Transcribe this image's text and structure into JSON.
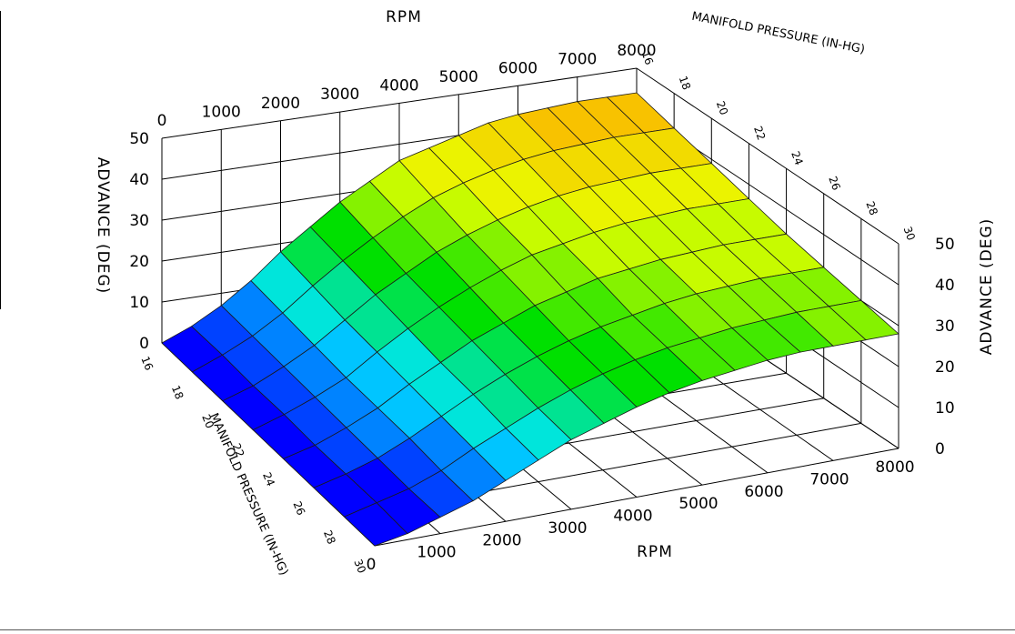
{
  "chart_data": {
    "type": "surface",
    "title": "",
    "axes": {
      "rpm": {
        "label": "RPM",
        "range": [
          0,
          8000
        ],
        "ticks": [
          0,
          1000,
          2000,
          3000,
          4000,
          5000,
          6000,
          7000,
          8000
        ]
      },
      "manifold_pressure": {
        "label": "MANIFOLD PRESSURE (IN-HG)",
        "range": [
          16,
          30
        ],
        "ticks": [
          16,
          18,
          20,
          22,
          24,
          26,
          28,
          30
        ]
      },
      "advance": {
        "label": "ADVANCE (DEG)",
        "range": [
          0,
          50
        ],
        "ticks": [
          0,
          10,
          20,
          30,
          40,
          50
        ]
      }
    },
    "rpm": [
      0,
      500,
      1000,
      1500,
      2000,
      2500,
      3000,
      3500,
      4000,
      4500,
      5000,
      5500,
      6000,
      6500,
      7000,
      7500,
      8000
    ],
    "manifold_pressure": [
      16,
      18,
      20,
      22,
      24,
      26,
      28,
      30
    ],
    "advance_grid": [
      [
        0,
        3,
        7,
        12,
        18,
        23,
        28,
        32,
        36,
        38,
        40,
        42,
        43,
        43.5,
        44,
        44,
        44
      ],
      [
        0,
        3,
        6.5,
        11,
        16.5,
        21.5,
        26,
        30,
        33.5,
        36,
        38,
        39.5,
        40.5,
        41,
        41.5,
        41.5,
        41.5
      ],
      [
        0,
        2.5,
        6,
        10,
        15,
        20,
        24,
        28,
        31,
        33.5,
        35.5,
        37,
        38,
        38.5,
        39,
        39,
        39
      ],
      [
        0,
        2.5,
        5.5,
        9,
        14,
        18.5,
        22.5,
        26,
        29,
        31.5,
        33,
        34.5,
        35.5,
        36,
        36.5,
        36.5,
        36.5
      ],
      [
        0,
        2,
        5,
        8.5,
        13,
        17,
        21,
        24,
        27,
        29,
        31,
        32,
        33,
        33.5,
        34,
        34,
        34
      ],
      [
        0,
        2,
        4.5,
        8,
        12,
        16,
        19.5,
        22.5,
        25,
        27,
        28.5,
        30,
        31,
        31.5,
        32,
        32,
        32
      ],
      [
        0,
        2,
        4,
        7,
        11,
        14.5,
        18,
        21,
        23.5,
        25.5,
        27,
        28,
        29,
        29.5,
        30,
        30,
        30
      ],
      [
        0,
        1.5,
        4,
        6.5,
        10,
        13.5,
        17,
        19.5,
        22,
        24,
        25.5,
        26.5,
        27.5,
        28,
        28,
        28,
        28
      ]
    ],
    "colormap": [
      "#0000ff",
      "#00e6ff",
      "#00e000",
      "#e8ff00",
      "#ffaa00"
    ]
  }
}
